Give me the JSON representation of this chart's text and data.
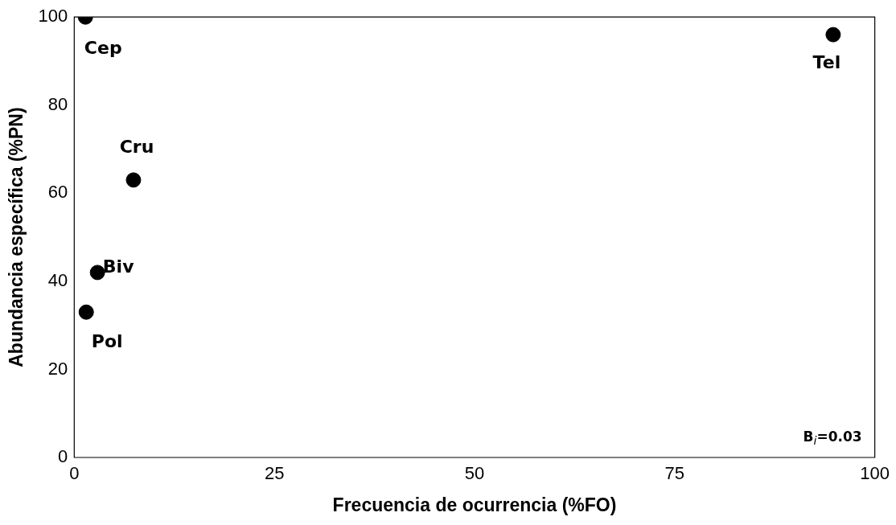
{
  "chart_data": {
    "type": "scatter",
    "xlabel": "Frecuencia de ocurrencia (%FO)",
    "ylabel": "Abundancia específica (%PN)",
    "x": [
      1.4,
      94.8,
      7.4,
      2.9,
      1.5
    ],
    "series": [
      {
        "color": "#000000",
        "values": [
          100,
          96,
          63,
          42,
          33
        ]
      }
    ],
    "xlim": [
      0,
      100
    ],
    "xticks": [
      0,
      25,
      50,
      75,
      100
    ],
    "ylim": [
      0,
      100
    ],
    "yticks": [
      0,
      20,
      40,
      60,
      80,
      100
    ],
    "grid": false,
    "legend": false,
    "marker": "circle",
    "annotations": [
      {
        "text": "Cep",
        "x": 1.4,
        "y": 100
      },
      {
        "text": "Tel",
        "x": 94.8,
        "y": 96
      },
      {
        "text": "Cru",
        "x": 7.4,
        "y": 63
      },
      {
        "text": "Biv",
        "x": 2.9,
        "y": 42
      },
      {
        "text": "Pol",
        "x": 1.5,
        "y": 33
      },
      "B$_{i}$=0.03"
    ]
  }
}
